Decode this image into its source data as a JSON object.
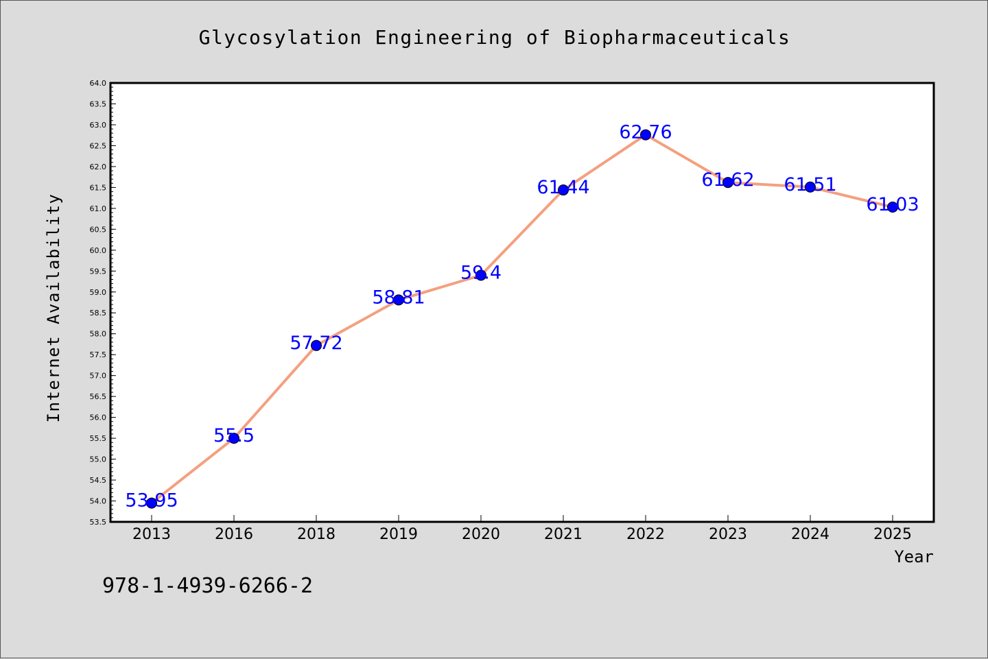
{
  "caption": "978-1-4939-6266-2",
  "chart_data": {
    "type": "line",
    "title": "Glycosylation Engineering of Biopharmaceuticals",
    "xlabel": "Year",
    "ylabel": "Internet Availability",
    "categories": [
      "2013",
      "2016",
      "2018",
      "2019",
      "2020",
      "2021",
      "2022",
      "2023",
      "2024",
      "2025"
    ],
    "values": [
      53.95,
      55.5,
      57.72,
      58.81,
      59.4,
      61.44,
      62.76,
      61.62,
      61.51,
      61.03
    ],
    "data_labels": [
      "53.95",
      "55.5",
      "57.72",
      "58.81",
      "59.4",
      "61.44",
      "62.76",
      "61.62",
      "61.51",
      "61.03"
    ],
    "ylim": [
      53.5,
      64.0
    ],
    "y_ticks": [
      "53.5",
      "54.0",
      "54.5",
      "55.0",
      "55.5",
      "56.0",
      "56.5",
      "57.0",
      "57.5",
      "58.0",
      "58.5",
      "59.0",
      "59.5",
      "60.0",
      "60.5",
      "61.0",
      "61.5",
      "62.0",
      "62.5",
      "63.0",
      "63.5",
      "64.0"
    ],
    "grid": false,
    "legend": "none",
    "colors": {
      "line": "#f4a07f",
      "marker": "#0000ff",
      "marker_edge": "#000000",
      "data_label": "#0000ff",
      "plot_background": "#ffffff",
      "figure_background": "#dcdcdc"
    }
  }
}
